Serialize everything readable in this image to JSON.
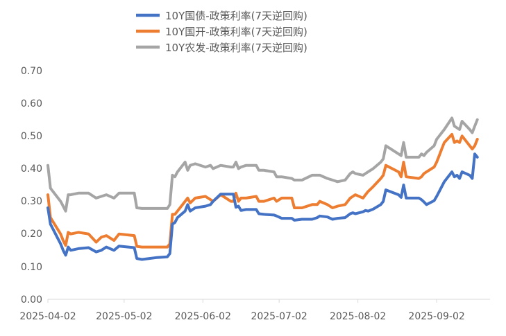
{
  "chart_data": {
    "type": "line",
    "title": "",
    "xlabel": "",
    "ylabel": "",
    "ylim": [
      0,
      0.7
    ],
    "y_ticks": [
      "0.00",
      "0.10",
      "0.20",
      "0.30",
      "0.40",
      "0.50",
      "0.60",
      "0.70"
    ],
    "x_ticks": [
      "2025-04-02",
      "2025-05-02",
      "2025-06-02",
      "2025-07-02",
      "2025-08-02",
      "2025-09-02"
    ],
    "x_range": [
      "2025-04-02",
      "2025-09-23"
    ],
    "grid": false,
    "legend_position": "top-center",
    "series": [
      {
        "name": "10Y国债-政策利率(7天逆回购)",
        "color": "#4472C4",
        "points": [
          [
            "2025-04-02",
            0.28
          ],
          [
            "2025-04-03",
            0.23
          ],
          [
            "2025-04-07",
            0.17
          ],
          [
            "2025-04-08",
            0.15
          ],
          [
            "2025-04-09",
            0.135
          ],
          [
            "2025-04-10",
            0.16
          ],
          [
            "2025-04-11",
            0.15
          ],
          [
            "2025-04-14",
            0.155
          ],
          [
            "2025-04-18",
            0.158
          ],
          [
            "2025-04-21",
            0.145
          ],
          [
            "2025-04-23",
            0.15
          ],
          [
            "2025-04-25",
            0.16
          ],
          [
            "2025-04-28",
            0.15
          ],
          [
            "2025-04-30",
            0.163
          ],
          [
            "2025-05-06",
            0.158
          ],
          [
            "2025-05-07",
            0.125
          ],
          [
            "2025-05-09",
            0.122
          ],
          [
            "2025-05-15",
            0.128
          ],
          [
            "2025-05-19",
            0.13
          ],
          [
            "2025-05-20",
            0.14
          ],
          [
            "2025-05-21",
            0.23
          ],
          [
            "2025-05-22",
            0.235
          ],
          [
            "2025-05-23",
            0.25
          ],
          [
            "2025-05-26",
            0.27
          ],
          [
            "2025-05-27",
            0.29
          ],
          [
            "2025-05-28",
            0.27
          ],
          [
            "2025-05-30",
            0.28
          ],
          [
            "2025-06-03",
            0.285
          ],
          [
            "2025-06-05",
            0.29
          ],
          [
            "2025-06-06",
            0.3
          ],
          [
            "2025-06-09",
            0.322
          ],
          [
            "2025-06-13",
            0.322
          ],
          [
            "2025-06-14",
            0.322
          ],
          [
            "2025-06-15",
            0.282
          ],
          [
            "2025-06-16",
            0.285
          ],
          [
            "2025-06-17",
            0.272
          ],
          [
            "2025-06-19",
            0.275
          ],
          [
            "2025-06-23",
            0.275
          ],
          [
            "2025-06-24",
            0.262
          ],
          [
            "2025-06-26",
            0.26
          ],
          [
            "2025-06-30",
            0.258
          ],
          [
            "2025-07-01",
            0.255
          ],
          [
            "2025-07-03",
            0.248
          ],
          [
            "2025-07-07",
            0.248
          ],
          [
            "2025-07-08",
            0.242
          ],
          [
            "2025-07-11",
            0.245
          ],
          [
            "2025-07-15",
            0.245
          ],
          [
            "2025-07-17",
            0.25
          ],
          [
            "2025-07-18",
            0.255
          ],
          [
            "2025-07-21",
            0.252
          ],
          [
            "2025-07-23",
            0.245
          ],
          [
            "2025-07-25",
            0.248
          ],
          [
            "2025-07-28",
            0.25
          ],
          [
            "2025-07-30",
            0.262
          ],
          [
            "2025-07-31",
            0.265
          ],
          [
            "2025-08-01",
            0.262
          ],
          [
            "2025-08-04",
            0.268
          ],
          [
            "2025-08-05",
            0.272
          ],
          [
            "2025-08-06",
            0.27
          ],
          [
            "2025-08-08",
            0.276
          ],
          [
            "2025-08-11",
            0.29
          ],
          [
            "2025-08-12",
            0.3
          ],
          [
            "2025-08-13",
            0.335
          ],
          [
            "2025-08-18",
            0.32
          ],
          [
            "2025-08-19",
            0.312
          ],
          [
            "2025-08-20",
            0.35
          ],
          [
            "2025-08-21",
            0.31
          ],
          [
            "2025-08-26",
            0.31
          ],
          [
            "2025-08-27",
            0.305
          ],
          [
            "2025-08-28",
            0.298
          ],
          [
            "2025-08-29",
            0.29
          ],
          [
            "2025-09-01",
            0.302
          ],
          [
            "2025-09-02",
            0.315
          ],
          [
            "2025-09-03",
            0.33
          ],
          [
            "2025-09-04",
            0.345
          ],
          [
            "2025-09-05",
            0.36
          ],
          [
            "2025-09-08",
            0.39
          ],
          [
            "2025-09-09",
            0.375
          ],
          [
            "2025-09-10",
            0.38
          ],
          [
            "2025-09-11",
            0.37
          ],
          [
            "2025-09-12",
            0.39
          ],
          [
            "2025-09-15",
            0.38
          ],
          [
            "2025-09-16",
            0.37
          ],
          [
            "2025-09-17",
            0.445
          ],
          [
            "2025-09-18",
            0.435
          ]
        ]
      },
      {
        "name": "10Y国开-政策利率(7天逆回购)",
        "color": "#ED7D31",
        "points": [
          [
            "2025-04-02",
            0.32
          ],
          [
            "2025-04-03",
            0.25
          ],
          [
            "2025-04-07",
            0.2
          ],
          [
            "2025-04-08",
            0.18
          ],
          [
            "2025-04-09",
            0.165
          ],
          [
            "2025-04-10",
            0.205
          ],
          [
            "2025-04-11",
            0.2
          ],
          [
            "2025-04-14",
            0.205
          ],
          [
            "2025-04-18",
            0.2
          ],
          [
            "2025-04-21",
            0.175
          ],
          [
            "2025-04-23",
            0.19
          ],
          [
            "2025-04-25",
            0.195
          ],
          [
            "2025-04-28",
            0.18
          ],
          [
            "2025-04-30",
            0.2
          ],
          [
            "2025-05-06",
            0.195
          ],
          [
            "2025-05-07",
            0.162
          ],
          [
            "2025-05-09",
            0.16
          ],
          [
            "2025-05-15",
            0.16
          ],
          [
            "2025-05-19",
            0.16
          ],
          [
            "2025-05-20",
            0.17
          ],
          [
            "2025-05-21",
            0.26
          ],
          [
            "2025-05-22",
            0.26
          ],
          [
            "2025-05-23",
            0.27
          ],
          [
            "2025-05-26",
            0.3
          ],
          [
            "2025-05-27",
            0.31
          ],
          [
            "2025-05-28",
            0.295
          ],
          [
            "2025-05-30",
            0.31
          ],
          [
            "2025-06-03",
            0.315
          ],
          [
            "2025-06-05",
            0.305
          ],
          [
            "2025-06-06",
            0.3
          ],
          [
            "2025-06-09",
            0.32
          ],
          [
            "2025-06-13",
            0.3
          ],
          [
            "2025-06-14",
            0.3
          ],
          [
            "2025-06-15",
            0.325
          ],
          [
            "2025-06-16",
            0.3
          ],
          [
            "2025-06-17",
            0.31
          ],
          [
            "2025-06-19",
            0.31
          ],
          [
            "2025-06-23",
            0.315
          ],
          [
            "2025-06-24",
            0.3
          ],
          [
            "2025-06-26",
            0.3
          ],
          [
            "2025-06-30",
            0.31
          ],
          [
            "2025-07-01",
            0.3
          ],
          [
            "2025-07-03",
            0.31
          ],
          [
            "2025-07-07",
            0.31
          ],
          [
            "2025-07-08",
            0.28
          ],
          [
            "2025-07-11",
            0.28
          ],
          [
            "2025-07-15",
            0.29
          ],
          [
            "2025-07-17",
            0.29
          ],
          [
            "2025-07-18",
            0.3
          ],
          [
            "2025-07-21",
            0.29
          ],
          [
            "2025-07-23",
            0.28
          ],
          [
            "2025-07-25",
            0.285
          ],
          [
            "2025-07-28",
            0.29
          ],
          [
            "2025-07-30",
            0.31
          ],
          [
            "2025-07-31",
            0.315
          ],
          [
            "2025-08-01",
            0.32
          ],
          [
            "2025-08-04",
            0.31
          ],
          [
            "2025-08-05",
            0.32
          ],
          [
            "2025-08-06",
            0.33
          ],
          [
            "2025-08-08",
            0.345
          ],
          [
            "2025-08-11",
            0.37
          ],
          [
            "2025-08-12",
            0.38
          ],
          [
            "2025-08-13",
            0.41
          ],
          [
            "2025-08-18",
            0.39
          ],
          [
            "2025-08-19",
            0.375
          ],
          [
            "2025-08-20",
            0.42
          ],
          [
            "2025-08-21",
            0.375
          ],
          [
            "2025-08-26",
            0.37
          ],
          [
            "2025-08-27",
            0.375
          ],
          [
            "2025-08-28",
            0.385
          ],
          [
            "2025-08-29",
            0.39
          ],
          [
            "2025-09-01",
            0.405
          ],
          [
            "2025-09-02",
            0.42
          ],
          [
            "2025-09-03",
            0.44
          ],
          [
            "2025-09-04",
            0.46
          ],
          [
            "2025-09-05",
            0.48
          ],
          [
            "2025-09-08",
            0.505
          ],
          [
            "2025-09-09",
            0.48
          ],
          [
            "2025-09-10",
            0.485
          ],
          [
            "2025-09-11",
            0.48
          ],
          [
            "2025-09-12",
            0.5
          ],
          [
            "2025-09-15",
            0.47
          ],
          [
            "2025-09-16",
            0.46
          ],
          [
            "2025-09-17",
            0.47
          ],
          [
            "2025-09-18",
            0.49
          ]
        ]
      },
      {
        "name": "10Y农发-政策利率(7天逆回购)",
        "color": "#A5A5A5",
        "points": [
          [
            "2025-04-02",
            0.41
          ],
          [
            "2025-04-03",
            0.34
          ],
          [
            "2025-04-07",
            0.3
          ],
          [
            "2025-04-08",
            0.285
          ],
          [
            "2025-04-09",
            0.27
          ],
          [
            "2025-04-10",
            0.32
          ],
          [
            "2025-04-11",
            0.32
          ],
          [
            "2025-04-14",
            0.325
          ],
          [
            "2025-04-18",
            0.325
          ],
          [
            "2025-04-21",
            0.31
          ],
          [
            "2025-04-23",
            0.315
          ],
          [
            "2025-04-25",
            0.32
          ],
          [
            "2025-04-28",
            0.31
          ],
          [
            "2025-04-30",
            0.325
          ],
          [
            "2025-05-06",
            0.325
          ],
          [
            "2025-05-07",
            0.28
          ],
          [
            "2025-05-09",
            0.278
          ],
          [
            "2025-05-15",
            0.278
          ],
          [
            "2025-05-19",
            0.278
          ],
          [
            "2025-05-20",
            0.29
          ],
          [
            "2025-05-21",
            0.38
          ],
          [
            "2025-05-22",
            0.375
          ],
          [
            "2025-05-23",
            0.39
          ],
          [
            "2025-05-26",
            0.42
          ],
          [
            "2025-05-27",
            0.395
          ],
          [
            "2025-05-28",
            0.41
          ],
          [
            "2025-05-30",
            0.415
          ],
          [
            "2025-06-03",
            0.405
          ],
          [
            "2025-06-05",
            0.41
          ],
          [
            "2025-06-06",
            0.4
          ],
          [
            "2025-06-09",
            0.41
          ],
          [
            "2025-06-13",
            0.405
          ],
          [
            "2025-06-14",
            0.405
          ],
          [
            "2025-06-15",
            0.42
          ],
          [
            "2025-06-16",
            0.4
          ],
          [
            "2025-06-17",
            0.405
          ],
          [
            "2025-06-19",
            0.41
          ],
          [
            "2025-06-23",
            0.41
          ],
          [
            "2025-06-24",
            0.395
          ],
          [
            "2025-06-26",
            0.395
          ],
          [
            "2025-06-30",
            0.39
          ],
          [
            "2025-07-01",
            0.375
          ],
          [
            "2025-07-03",
            0.375
          ],
          [
            "2025-07-07",
            0.37
          ],
          [
            "2025-07-08",
            0.365
          ],
          [
            "2025-07-11",
            0.365
          ],
          [
            "2025-07-15",
            0.38
          ],
          [
            "2025-07-17",
            0.38
          ],
          [
            "2025-07-18",
            0.38
          ],
          [
            "2025-07-21",
            0.37
          ],
          [
            "2025-07-23",
            0.365
          ],
          [
            "2025-07-25",
            0.36
          ],
          [
            "2025-07-28",
            0.365
          ],
          [
            "2025-07-30",
            0.385
          ],
          [
            "2025-07-31",
            0.39
          ],
          [
            "2025-08-01",
            0.385
          ],
          [
            "2025-08-04",
            0.38
          ],
          [
            "2025-08-05",
            0.385
          ],
          [
            "2025-08-06",
            0.39
          ],
          [
            "2025-08-08",
            0.4
          ],
          [
            "2025-08-11",
            0.42
          ],
          [
            "2025-08-12",
            0.43
          ],
          [
            "2025-08-13",
            0.47
          ],
          [
            "2025-08-18",
            0.445
          ],
          [
            "2025-08-19",
            0.44
          ],
          [
            "2025-08-20",
            0.48
          ],
          [
            "2025-08-21",
            0.435
          ],
          [
            "2025-08-26",
            0.435
          ],
          [
            "2025-08-27",
            0.445
          ],
          [
            "2025-08-28",
            0.44
          ],
          [
            "2025-08-29",
            0.45
          ],
          [
            "2025-09-01",
            0.47
          ],
          [
            "2025-09-02",
            0.49
          ],
          [
            "2025-09-03",
            0.5
          ],
          [
            "2025-09-04",
            0.51
          ],
          [
            "2025-09-05",
            0.52
          ],
          [
            "2025-09-08",
            0.555
          ],
          [
            "2025-09-09",
            0.53
          ],
          [
            "2025-09-10",
            0.525
          ],
          [
            "2025-09-11",
            0.52
          ],
          [
            "2025-09-12",
            0.545
          ],
          [
            "2025-09-15",
            0.52
          ],
          [
            "2025-09-16",
            0.51
          ],
          [
            "2025-09-17",
            0.53
          ],
          [
            "2025-09-18",
            0.55
          ]
        ]
      }
    ]
  }
}
